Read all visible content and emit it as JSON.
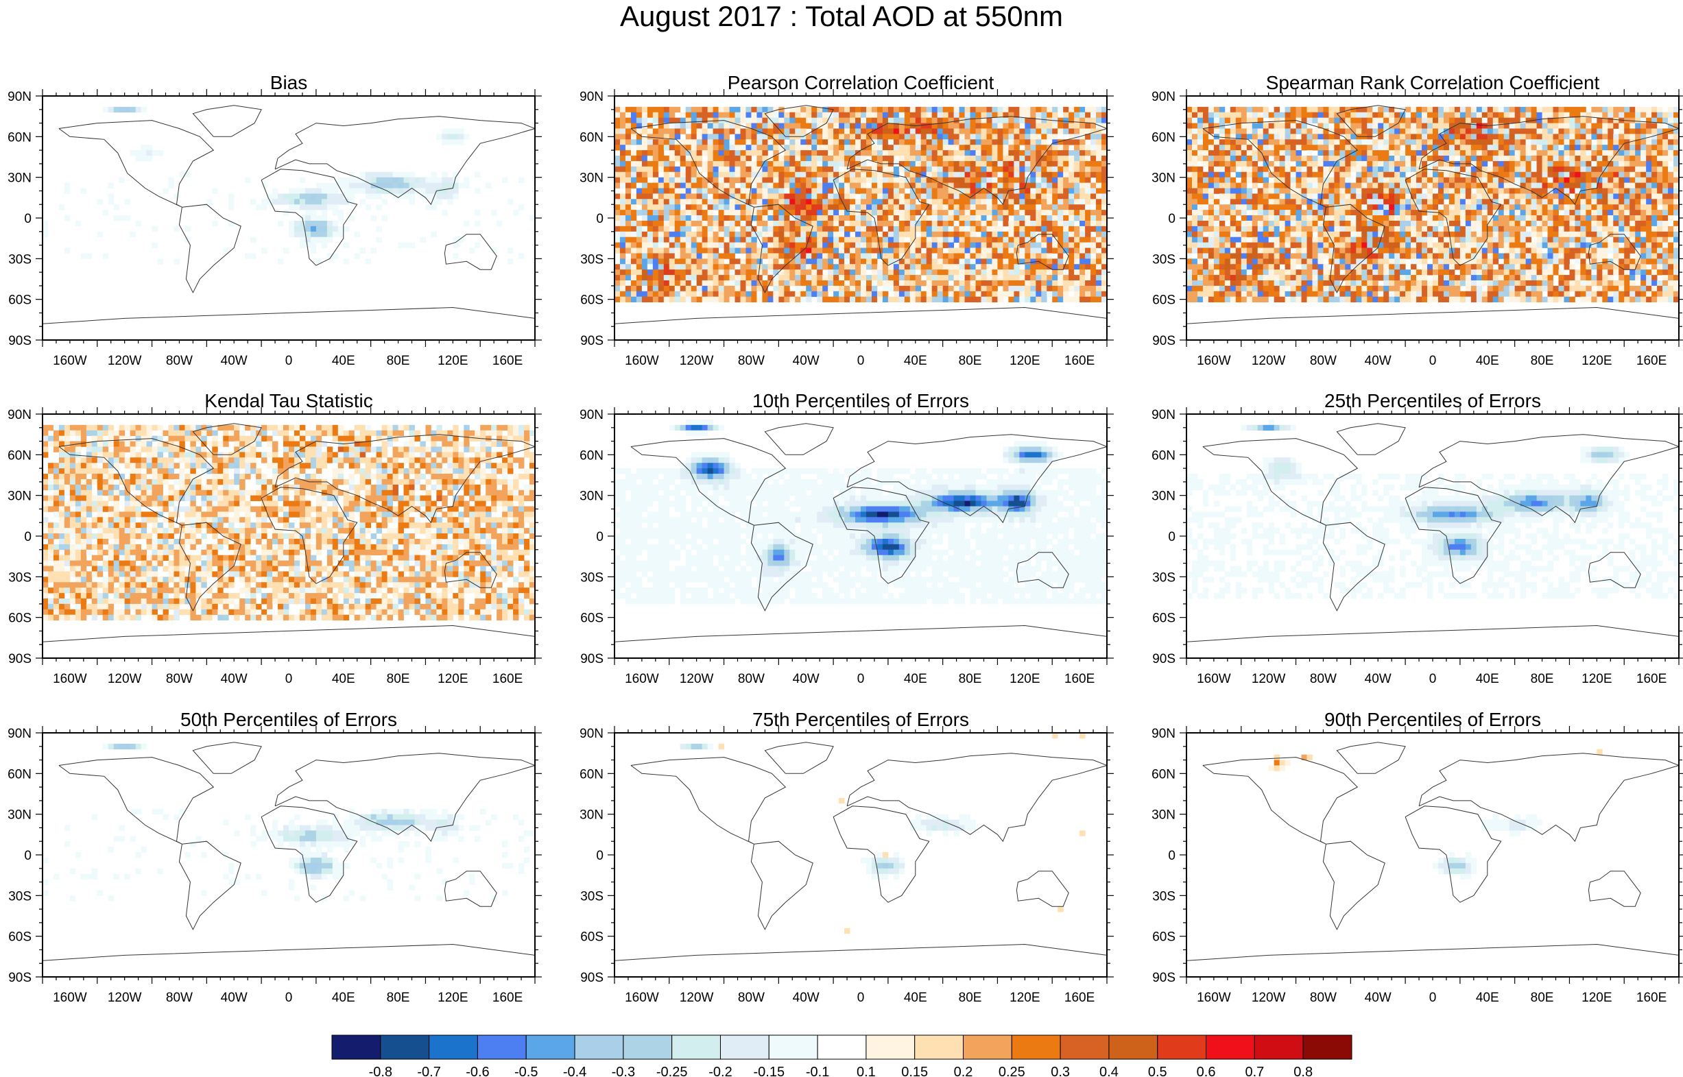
{
  "title": "August 2017 : Total AOD at 550nm",
  "lon_labels": [
    "160W",
    "120W",
    "80W",
    "40W",
    "0",
    "40E",
    "80E",
    "120E",
    "160E"
  ],
  "lat_labels": [
    "90N",
    "60N",
    "30N",
    "0",
    "30S",
    "60S",
    "90S"
  ],
  "panels": [
    {
      "title": "Bias",
      "pattern": "bias"
    },
    {
      "title": "Pearson Correlation Coefficient",
      "pattern": "corr"
    },
    {
      "title": "Spearman Rank Correlation Coefficient",
      "pattern": "corr"
    },
    {
      "title": "Kendal Tau Statistic",
      "pattern": "tau"
    },
    {
      "title": "10th Percentiles of Errors",
      "pattern": "p10"
    },
    {
      "title": "25th Percentiles of Errors",
      "pattern": "p25"
    },
    {
      "title": "50th Percentiles of Errors",
      "pattern": "p50"
    },
    {
      "title": "75th Percentiles of Errors",
      "pattern": "p75"
    },
    {
      "title": "90th Percentiles of Errors",
      "pattern": "p90"
    }
  ],
  "colorbar": {
    "labels": [
      "-0.8",
      "-0.7",
      "-0.6",
      "-0.5",
      "-0.4",
      "-0.3",
      "-0.25",
      "-0.2",
      "-0.15",
      "-0.1",
      "0.1",
      "0.15",
      "0.2",
      "0.25",
      "0.3",
      "0.4",
      "0.5",
      "0.6",
      "0.7",
      "0.8"
    ],
    "colors": [
      "#141c6e",
      "#154f8f",
      "#1c73cc",
      "#4d7ef2",
      "#5aa6e6",
      "#a9d0e8",
      "#acd3e6",
      "#d3eeee",
      "#e0edf6",
      "#eefafc",
      "#ffffff",
      "#fff4e2",
      "#ffe0b2",
      "#f2a35c",
      "#ec7a12",
      "#d86224",
      "#ce621b",
      "#e03c1c",
      "#f0101a",
      "#cf0d13",
      "#8c0a06"
    ]
  }
}
